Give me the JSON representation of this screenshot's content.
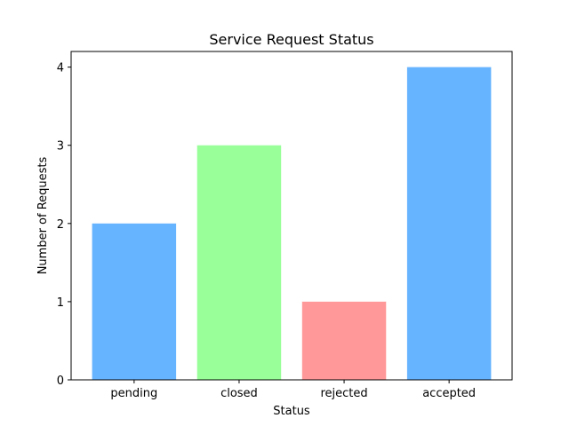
{
  "chart_data": {
    "type": "bar",
    "title": "Service Request Status",
    "xlabel": "Status",
    "ylabel": "Number of Requests",
    "categories": [
      "pending",
      "closed",
      "rejected",
      "accepted"
    ],
    "values": [
      2,
      3,
      1,
      4
    ],
    "colors": [
      "#66b3ff",
      "#99ff99",
      "#ff9999",
      "#66b3ff"
    ],
    "ylim": [
      0,
      4.2
    ],
    "yticks": [
      0,
      1,
      2,
      3,
      4
    ],
    "grid": false,
    "legend": "none"
  }
}
